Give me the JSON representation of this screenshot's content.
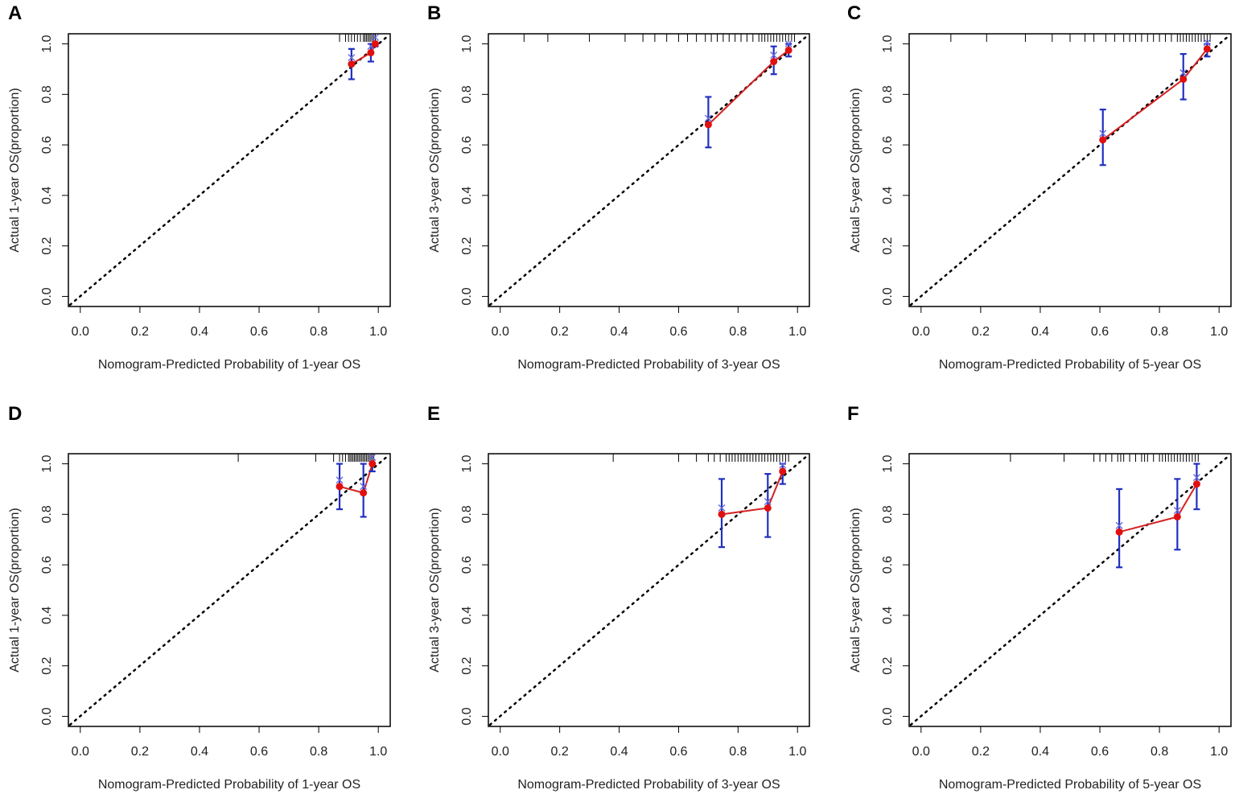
{
  "colors": {
    "calibration": "#e01010",
    "errorbar": "#2030c0",
    "ideal": "#000000"
  },
  "chart_data": [
    {
      "type": "scatter",
      "panel": "A",
      "xlabel": "Nomogram-Predicted Probability of 1-year OS",
      "ylabel": "Actual 1-year OS(proportion)",
      "xlim": [
        0,
        1
      ],
      "ylim": [
        0,
        1
      ],
      "xticks": [
        "0.0",
        "0.2",
        "0.4",
        "0.6",
        "0.8",
        "1.0"
      ],
      "yticks": [
        "0.0",
        "0.2",
        "0.4",
        "0.6",
        "0.8",
        "1.0"
      ],
      "points": [
        {
          "x": 0.91,
          "y": 0.92,
          "lo": 0.86,
          "hi": 0.98
        },
        {
          "x": 0.975,
          "y": 0.965,
          "lo": 0.93,
          "hi": 1.0
        },
        {
          "x": 0.99,
          "y": 1.0,
          "lo": 0.99,
          "hi": 1.0
        }
      ],
      "rug": [
        0.87,
        0.89,
        0.9,
        0.91,
        0.92,
        0.93,
        0.94,
        0.95,
        0.955,
        0.96,
        0.965,
        0.97,
        0.975,
        0.98,
        0.985,
        0.99
      ]
    },
    {
      "type": "scatter",
      "panel": "B",
      "xlabel": "Nomogram-Predicted Probability of 3-year OS",
      "ylabel": "Actual 3-year OS(proportion)",
      "xlim": [
        0,
        1
      ],
      "ylim": [
        0,
        1
      ],
      "xticks": [
        "0.0",
        "0.2",
        "0.4",
        "0.6",
        "0.8",
        "1.0"
      ],
      "yticks": [
        "0.0",
        "0.2",
        "0.4",
        "0.6",
        "0.8",
        "1.0"
      ],
      "points": [
        {
          "x": 0.7,
          "y": 0.68,
          "lo": 0.59,
          "hi": 0.79
        },
        {
          "x": 0.92,
          "y": 0.93,
          "lo": 0.88,
          "hi": 0.99
        },
        {
          "x": 0.97,
          "y": 0.975,
          "lo": 0.95,
          "hi": 1.0
        }
      ],
      "rug": [
        0.08,
        0.16,
        0.3,
        0.42,
        0.48,
        0.52,
        0.56,
        0.6,
        0.63,
        0.66,
        0.69,
        0.71,
        0.73,
        0.75,
        0.77,
        0.79,
        0.81,
        0.83,
        0.85,
        0.87,
        0.88,
        0.89,
        0.9,
        0.91,
        0.92,
        0.93,
        0.94,
        0.95,
        0.96,
        0.97,
        0.98,
        0.99
      ]
    },
    {
      "type": "scatter",
      "panel": "C",
      "xlabel": "Nomogram-Predicted Probability of 5-year OS",
      "ylabel": "Actual 5-year OS(proportion)",
      "xlim": [
        0,
        1
      ],
      "ylim": [
        0,
        1
      ],
      "xticks": [
        "0.0",
        "0.2",
        "0.4",
        "0.6",
        "0.8",
        "1.0"
      ],
      "yticks": [
        "0.0",
        "0.2",
        "0.4",
        "0.6",
        "0.8",
        "1.0"
      ],
      "points": [
        {
          "x": 0.61,
          "y": 0.62,
          "lo": 0.52,
          "hi": 0.74
        },
        {
          "x": 0.88,
          "y": 0.86,
          "lo": 0.78,
          "hi": 0.96
        },
        {
          "x": 0.96,
          "y": 0.98,
          "lo": 0.95,
          "hi": 1.0
        }
      ],
      "rug": [
        0.1,
        0.22,
        0.35,
        0.44,
        0.5,
        0.55,
        0.58,
        0.62,
        0.65,
        0.68,
        0.7,
        0.72,
        0.74,
        0.76,
        0.78,
        0.8,
        0.82,
        0.84,
        0.86,
        0.87,
        0.88,
        0.89,
        0.9,
        0.91,
        0.92,
        0.93,
        0.94,
        0.95,
        0.96,
        0.97
      ]
    },
    {
      "type": "scatter",
      "panel": "D",
      "xlabel": "Nomogram-Predicted Probability of 1-year OS",
      "ylabel": "Actual 1-year OS(proportion)",
      "xlim": [
        0,
        1
      ],
      "ylim": [
        0,
        1
      ],
      "xticks": [
        "0.0",
        "0.2",
        "0.4",
        "0.6",
        "0.8",
        "1.0"
      ],
      "yticks": [
        "0.0",
        "0.2",
        "0.4",
        "0.6",
        "0.8",
        "1.0"
      ],
      "points": [
        {
          "x": 0.87,
          "y": 0.91,
          "lo": 0.82,
          "hi": 1.0
        },
        {
          "x": 0.95,
          "y": 0.885,
          "lo": 0.79,
          "hi": 1.0
        },
        {
          "x": 0.98,
          "y": 1.0,
          "lo": 0.97,
          "hi": 1.0
        }
      ],
      "rug": [
        0.53,
        0.79,
        0.85,
        0.87,
        0.88,
        0.89,
        0.9,
        0.905,
        0.91,
        0.915,
        0.92,
        0.925,
        0.93,
        0.935,
        0.94,
        0.945,
        0.95,
        0.955,
        0.96,
        0.965,
        0.97,
        0.975,
        0.98,
        0.985
      ]
    },
    {
      "type": "scatter",
      "panel": "E",
      "xlabel": "Nomogram-Predicted Probability of 3-year OS",
      "ylabel": "Actual 3-year OS(proportion)",
      "xlim": [
        0,
        1
      ],
      "ylim": [
        0,
        1
      ],
      "xticks": [
        "0.0",
        "0.2",
        "0.4",
        "0.6",
        "0.8",
        "1.0"
      ],
      "yticks": [
        "0.0",
        "0.2",
        "0.4",
        "0.6",
        "0.8",
        "1.0"
      ],
      "points": [
        {
          "x": 0.745,
          "y": 0.8,
          "lo": 0.67,
          "hi": 0.94
        },
        {
          "x": 0.9,
          "y": 0.825,
          "lo": 0.71,
          "hi": 0.96
        },
        {
          "x": 0.95,
          "y": 0.97,
          "lo": 0.92,
          "hi": 1.0
        }
      ],
      "rug": [
        0.38,
        0.6,
        0.66,
        0.7,
        0.72,
        0.74,
        0.76,
        0.77,
        0.78,
        0.79,
        0.8,
        0.81,
        0.82,
        0.83,
        0.84,
        0.85,
        0.86,
        0.87,
        0.88,
        0.89,
        0.9,
        0.91,
        0.92,
        0.93,
        0.94,
        0.95,
        0.96,
        0.97
      ]
    },
    {
      "type": "scatter",
      "panel": "F",
      "xlabel": "Nomogram-Predicted Probability of 5-year OS",
      "ylabel": "Actual 5-year OS(proportion)",
      "xlim": [
        0,
        1
      ],
      "ylim": [
        0,
        1
      ],
      "xticks": [
        "0.0",
        "0.2",
        "0.4",
        "0.6",
        "0.8",
        "1.0"
      ],
      "yticks": [
        "0.0",
        "0.2",
        "0.4",
        "0.6",
        "0.8",
        "1.0"
      ],
      "points": [
        {
          "x": 0.665,
          "y": 0.73,
          "lo": 0.59,
          "hi": 0.9
        },
        {
          "x": 0.86,
          "y": 0.79,
          "lo": 0.66,
          "hi": 0.94
        },
        {
          "x": 0.925,
          "y": 0.92,
          "lo": 0.82,
          "hi": 1.0
        }
      ],
      "rug": [
        0.3,
        0.48,
        0.58,
        0.6,
        0.62,
        0.64,
        0.66,
        0.67,
        0.68,
        0.7,
        0.72,
        0.74,
        0.75,
        0.76,
        0.78,
        0.8,
        0.81,
        0.82,
        0.83,
        0.84,
        0.85,
        0.86,
        0.87,
        0.88,
        0.89,
        0.9,
        0.91,
        0.92,
        0.93
      ]
    }
  ]
}
